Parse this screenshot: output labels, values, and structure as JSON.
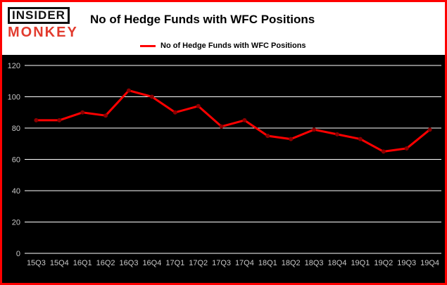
{
  "header": {
    "logo_top": "INSIDER",
    "logo_bottom": "MONKEY",
    "title": "No of Hedge Funds with WFC Positions"
  },
  "legend": {
    "label": "No of Hedge Funds with WFC Positions"
  },
  "chart_data": {
    "type": "line",
    "title": "No of Hedge Funds with WFC Positions",
    "categories": [
      "15Q3",
      "15Q4",
      "16Q1",
      "16Q2",
      "16Q3",
      "16Q4",
      "17Q1",
      "17Q2",
      "17Q3",
      "17Q4",
      "18Q1",
      "18Q2",
      "18Q3",
      "18Q4",
      "19Q1",
      "19Q2",
      "19Q3",
      "19Q4"
    ],
    "values": [
      85,
      85,
      90,
      88,
      104,
      100,
      90,
      94,
      81,
      85,
      75,
      73,
      79,
      76,
      73,
      65,
      67,
      79
    ],
    "xlabel": "",
    "ylabel": "",
    "ylim": [
      0,
      120
    ],
    "yticks": [
      0,
      20,
      40,
      60,
      80,
      100,
      120
    ],
    "grid": true,
    "legend_position": "top",
    "colors": {
      "line": "#fe0000",
      "marker": "#8b0000",
      "plot_background": "#000000",
      "grid": "#ffffff",
      "tick_label": "#c8c8c8",
      "frame_border": "#fe0000",
      "header_background": "#ffffff",
      "logo_monkey": "#e23b2e"
    }
  }
}
